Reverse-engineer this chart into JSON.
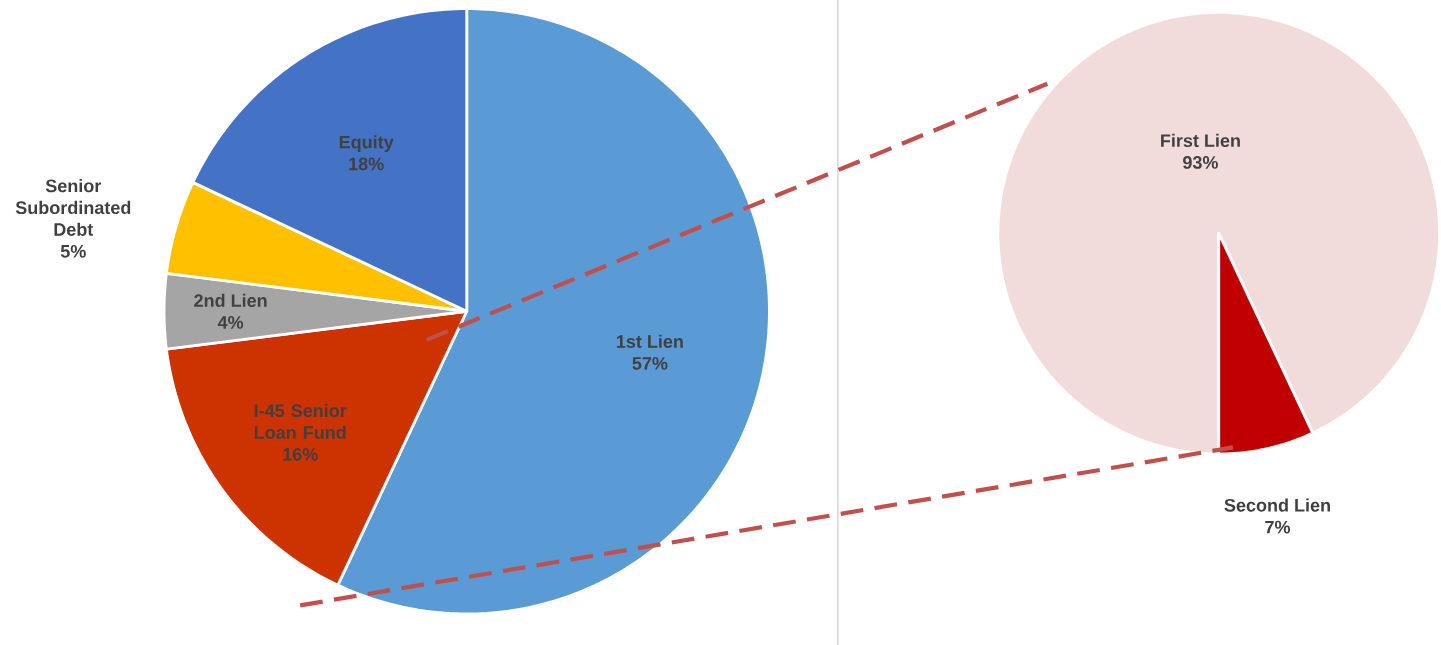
{
  "chart_data": [
    {
      "type": "pie",
      "categories": [
        "1st Lien",
        "I-45 Senior Loan Fund",
        "2nd Lien",
        "Senior Subordinated Debt",
        "Equity"
      ],
      "values": [
        57,
        16,
        4,
        5,
        18
      ],
      "value_labels": [
        "57%",
        "16%",
        "4%",
        "5%",
        "18%"
      ],
      "colors": [
        "#5b9bd5",
        "#cc3300",
        "#a5a5a5",
        "#ffc000",
        "#4472c4"
      ]
    },
    {
      "type": "pie",
      "categories": [
        "First Lien",
        "Second Lien"
      ],
      "values": [
        93,
        7
      ],
      "value_labels": [
        "93%",
        "7%"
      ],
      "colors": [
        "#f2dcdb",
        "#c00000"
      ]
    }
  ]
}
